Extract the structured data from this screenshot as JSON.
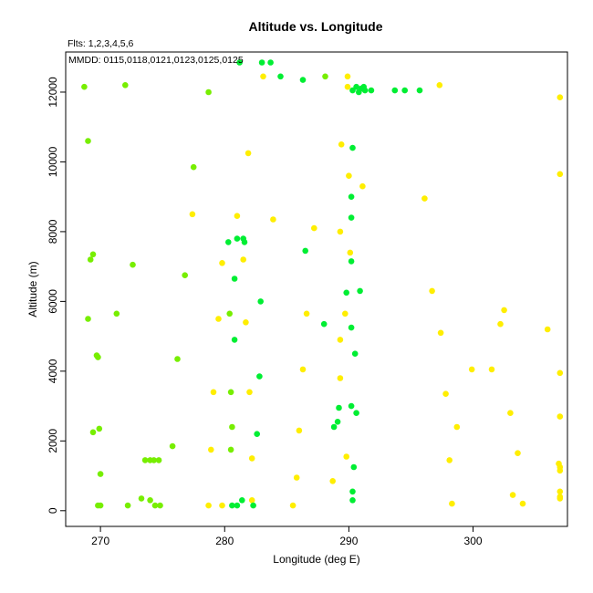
{
  "chart_data": {
    "type": "scatter",
    "title": "Altitude vs. Longitude",
    "subtitle": "Flts: 1,2,3,4,5,6",
    "annotation": "MMDD: 0115,0118,0121,0123,0125,0125",
    "xlabel": "Longitude (deg E)",
    "ylabel": "Altitude (m)",
    "xlim": [
      267.2,
      307.6
    ],
    "ylim": [
      -450,
      13150
    ],
    "xticks": [
      270,
      280,
      290,
      300
    ],
    "yticks": [
      0,
      2000,
      4000,
      6000,
      8000,
      10000,
      12000
    ],
    "grid": false,
    "colors": {
      "green": "#00ee33",
      "lime": "#77ee00",
      "yellow": "#ffee00"
    },
    "points": [
      {
        "x": 268.7,
        "y": 12150,
        "c": "lime"
      },
      {
        "x": 272.0,
        "y": 12200,
        "c": "lime"
      },
      {
        "x": 269.0,
        "y": 10600,
        "c": "lime"
      },
      {
        "x": 269.4,
        "y": 7350,
        "c": "lime"
      },
      {
        "x": 269.2,
        "y": 7200,
        "c": "lime"
      },
      {
        "x": 269.0,
        "y": 5500,
        "c": "lime"
      },
      {
        "x": 269.7,
        "y": 4450,
        "c": "lime"
      },
      {
        "x": 269.8,
        "y": 4400,
        "c": "lime"
      },
      {
        "x": 269.9,
        "y": 2350,
        "c": "lime"
      },
      {
        "x": 269.4,
        "y": 2250,
        "c": "lime"
      },
      {
        "x": 270.0,
        "y": 1050,
        "c": "lime"
      },
      {
        "x": 269.8,
        "y": 150,
        "c": "lime"
      },
      {
        "x": 270.0,
        "y": 150,
        "c": "lime"
      },
      {
        "x": 271.3,
        "y": 5650,
        "c": "lime"
      },
      {
        "x": 272.6,
        "y": 7050,
        "c": "lime"
      },
      {
        "x": 272.2,
        "y": 150,
        "c": "lime"
      },
      {
        "x": 273.3,
        "y": 350,
        "c": "lime"
      },
      {
        "x": 273.6,
        "y": 1450,
        "c": "lime"
      },
      {
        "x": 274.0,
        "y": 1450,
        "c": "lime"
      },
      {
        "x": 274.3,
        "y": 1450,
        "c": "lime"
      },
      {
        "x": 274.7,
        "y": 1450,
        "c": "lime"
      },
      {
        "x": 274.0,
        "y": 300,
        "c": "lime"
      },
      {
        "x": 274.4,
        "y": 150,
        "c": "lime"
      },
      {
        "x": 274.8,
        "y": 150,
        "c": "lime"
      },
      {
        "x": 275.8,
        "y": 1850,
        "c": "lime"
      },
      {
        "x": 276.2,
        "y": 4350,
        "c": "lime"
      },
      {
        "x": 276.8,
        "y": 6750,
        "c": "lime"
      },
      {
        "x": 277.5,
        "y": 9850,
        "c": "lime"
      },
      {
        "x": 277.4,
        "y": 8500,
        "c": "yellow"
      },
      {
        "x": 278.7,
        "y": 12000,
        "c": "lime"
      },
      {
        "x": 278.7,
        "y": 150,
        "c": "yellow"
      },
      {
        "x": 278.9,
        "y": 1750,
        "c": "yellow"
      },
      {
        "x": 279.1,
        "y": 3400,
        "c": "yellow"
      },
      {
        "x": 279.5,
        "y": 5500,
        "c": "yellow"
      },
      {
        "x": 279.8,
        "y": 7100,
        "c": "yellow"
      },
      {
        "x": 279.8,
        "y": 150,
        "c": "yellow"
      },
      {
        "x": 280.3,
        "y": 7700,
        "c": "green"
      },
      {
        "x": 280.4,
        "y": 5650,
        "c": "lime"
      },
      {
        "x": 280.5,
        "y": 3400,
        "c": "lime"
      },
      {
        "x": 280.6,
        "y": 2400,
        "c": "lime"
      },
      {
        "x": 280.5,
        "y": 1750,
        "c": "lime"
      },
      {
        "x": 280.8,
        "y": 4900,
        "c": "green"
      },
      {
        "x": 280.8,
        "y": 6650,
        "c": "green"
      },
      {
        "x": 281.0,
        "y": 7800,
        "c": "green"
      },
      {
        "x": 281.5,
        "y": 7800,
        "c": "green"
      },
      {
        "x": 281.6,
        "y": 7700,
        "c": "green"
      },
      {
        "x": 281.0,
        "y": 8450,
        "c": "yellow"
      },
      {
        "x": 281.5,
        "y": 7200,
        "c": "yellow"
      },
      {
        "x": 281.7,
        "y": 5400,
        "c": "yellow"
      },
      {
        "x": 281.2,
        "y": 12850,
        "c": "green"
      },
      {
        "x": 280.6,
        "y": 150,
        "c": "green"
      },
      {
        "x": 281.0,
        "y": 150,
        "c": "green"
      },
      {
        "x": 281.4,
        "y": 300,
        "c": "green"
      },
      {
        "x": 281.9,
        "y": 10250,
        "c": "yellow"
      },
      {
        "x": 282.0,
        "y": 3400,
        "c": "yellow"
      },
      {
        "x": 282.2,
        "y": 1500,
        "c": "yellow"
      },
      {
        "x": 282.2,
        "y": 300,
        "c": "yellow"
      },
      {
        "x": 282.3,
        "y": 150,
        "c": "green"
      },
      {
        "x": 282.6,
        "y": 2200,
        "c": "green"
      },
      {
        "x": 282.8,
        "y": 3850,
        "c": "green"
      },
      {
        "x": 282.9,
        "y": 6000,
        "c": "green"
      },
      {
        "x": 283.0,
        "y": 12850,
        "c": "green"
      },
      {
        "x": 283.1,
        "y": 12450,
        "c": "yellow"
      },
      {
        "x": 283.7,
        "y": 12850,
        "c": "green"
      },
      {
        "x": 283.9,
        "y": 8350,
        "c": "yellow"
      },
      {
        "x": 284.5,
        "y": 12450,
        "c": "green"
      },
      {
        "x": 285.5,
        "y": 150,
        "c": "yellow"
      },
      {
        "x": 285.8,
        "y": 950,
        "c": "yellow"
      },
      {
        "x": 286.0,
        "y": 2300,
        "c": "yellow"
      },
      {
        "x": 286.3,
        "y": 4050,
        "c": "yellow"
      },
      {
        "x": 286.3,
        "y": 12350,
        "c": "green"
      },
      {
        "x": 286.5,
        "y": 7450,
        "c": "green"
      },
      {
        "x": 286.6,
        "y": 5650,
        "c": "yellow"
      },
      {
        "x": 287.2,
        "y": 8100,
        "c": "yellow"
      },
      {
        "x": 288.0,
        "y": 5350,
        "c": "green"
      },
      {
        "x": 288.1,
        "y": 12450,
        "c": "lime"
      },
      {
        "x": 288.7,
        "y": 850,
        "c": "yellow"
      },
      {
        "x": 288.8,
        "y": 2400,
        "c": "green"
      },
      {
        "x": 289.1,
        "y": 2550,
        "c": "green"
      },
      {
        "x": 289.2,
        "y": 2950,
        "c": "green"
      },
      {
        "x": 289.3,
        "y": 3800,
        "c": "yellow"
      },
      {
        "x": 289.3,
        "y": 4900,
        "c": "yellow"
      },
      {
        "x": 289.3,
        "y": 8000,
        "c": "yellow"
      },
      {
        "x": 289.4,
        "y": 10500,
        "c": "yellow"
      },
      {
        "x": 289.7,
        "y": 5650,
        "c": "yellow"
      },
      {
        "x": 289.8,
        "y": 1550,
        "c": "yellow"
      },
      {
        "x": 289.9,
        "y": 12450,
        "c": "yellow"
      },
      {
        "x": 289.9,
        "y": 12150,
        "c": "yellow"
      },
      {
        "x": 289.8,
        "y": 6250,
        "c": "green"
      },
      {
        "x": 290.0,
        "y": 9600,
        "c": "yellow"
      },
      {
        "x": 290.1,
        "y": 7400,
        "c": "yellow"
      },
      {
        "x": 290.2,
        "y": 9000,
        "c": "green"
      },
      {
        "x": 290.2,
        "y": 8400,
        "c": "green"
      },
      {
        "x": 290.2,
        "y": 7150,
        "c": "green"
      },
      {
        "x": 290.2,
        "y": 5250,
        "c": "green"
      },
      {
        "x": 290.2,
        "y": 3000,
        "c": "green"
      },
      {
        "x": 290.3,
        "y": 10400,
        "c": "green"
      },
      {
        "x": 290.3,
        "y": 550,
        "c": "green"
      },
      {
        "x": 290.3,
        "y": 300,
        "c": "green"
      },
      {
        "x": 290.4,
        "y": 1250,
        "c": "green"
      },
      {
        "x": 290.5,
        "y": 4500,
        "c": "green"
      },
      {
        "x": 290.6,
        "y": 2800,
        "c": "green"
      },
      {
        "x": 290.3,
        "y": 12050,
        "c": "green"
      },
      {
        "x": 290.6,
        "y": 12150,
        "c": "green"
      },
      {
        "x": 290.8,
        "y": 12000,
        "c": "green"
      },
      {
        "x": 291.0,
        "y": 12100,
        "c": "green"
      },
      {
        "x": 291.2,
        "y": 12150,
        "c": "green"
      },
      {
        "x": 291.3,
        "y": 12050,
        "c": "green"
      },
      {
        "x": 291.8,
        "y": 12050,
        "c": "green"
      },
      {
        "x": 290.9,
        "y": 6300,
        "c": "green"
      },
      {
        "x": 291.1,
        "y": 9300,
        "c": "yellow"
      },
      {
        "x": 293.7,
        "y": 12050,
        "c": "green"
      },
      {
        "x": 294.5,
        "y": 12050,
        "c": "green"
      },
      {
        "x": 295.7,
        "y": 12050,
        "c": "green"
      },
      {
        "x": 296.1,
        "y": 8950,
        "c": "yellow"
      },
      {
        "x": 296.7,
        "y": 6300,
        "c": "yellow"
      },
      {
        "x": 297.3,
        "y": 12200,
        "c": "yellow"
      },
      {
        "x": 297.4,
        "y": 5100,
        "c": "yellow"
      },
      {
        "x": 297.8,
        "y": 3350,
        "c": "yellow"
      },
      {
        "x": 298.1,
        "y": 1450,
        "c": "yellow"
      },
      {
        "x": 298.3,
        "y": 200,
        "c": "yellow"
      },
      {
        "x": 298.7,
        "y": 2400,
        "c": "yellow"
      },
      {
        "x": 299.9,
        "y": 4050,
        "c": "yellow"
      },
      {
        "x": 301.5,
        "y": 4050,
        "c": "yellow"
      },
      {
        "x": 302.2,
        "y": 5350,
        "c": "yellow"
      },
      {
        "x": 302.5,
        "y": 5750,
        "c": "yellow"
      },
      {
        "x": 303.0,
        "y": 2800,
        "c": "yellow"
      },
      {
        "x": 303.2,
        "y": 450,
        "c": "yellow"
      },
      {
        "x": 303.6,
        "y": 1650,
        "c": "yellow"
      },
      {
        "x": 304.0,
        "y": 200,
        "c": "yellow"
      },
      {
        "x": 306.0,
        "y": 5200,
        "c": "yellow"
      },
      {
        "x": 307.0,
        "y": 11850,
        "c": "yellow"
      },
      {
        "x": 307.0,
        "y": 9650,
        "c": "yellow"
      },
      {
        "x": 307.0,
        "y": 3950,
        "c": "yellow"
      },
      {
        "x": 307.0,
        "y": 2700,
        "c": "yellow"
      },
      {
        "x": 306.9,
        "y": 1350,
        "c": "yellow"
      },
      {
        "x": 307.0,
        "y": 1250,
        "c": "yellow"
      },
      {
        "x": 307.0,
        "y": 1150,
        "c": "yellow"
      },
      {
        "x": 307.0,
        "y": 550,
        "c": "yellow"
      },
      {
        "x": 307.0,
        "y": 400,
        "c": "yellow"
      },
      {
        "x": 307.0,
        "y": 350,
        "c": "yellow"
      }
    ]
  }
}
